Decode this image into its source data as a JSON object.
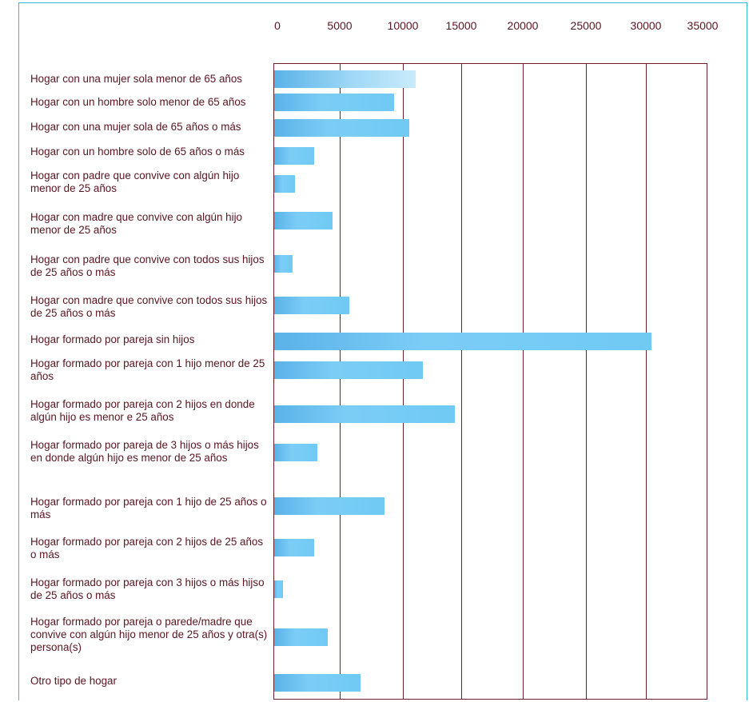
{
  "chart_data": {
    "type": "bar",
    "orientation": "horizontal",
    "xlim": [
      0,
      35000
    ],
    "xticks": [
      "0",
      "5000",
      "10000",
      "15000",
      "20000",
      "25000",
      "30000",
      "35000"
    ],
    "grid": true,
    "categories": [
      "Hogar con una mujer sola menor de 65 años",
      "Hogar con un hombre solo menor de 65 años",
      "Hogar con una mujer sola de 65 años o más",
      "Hogar con un hombre solo de 65 años o más",
      "Hogar con padre que convive con algún hijo menor de 25 años",
      "Hogar con madre que convive con algún hijo menor de 25 años",
      "Hogar con padre que convive con todos sus hijos de 25 años o más",
      "Hogar con madre que convive con todos sus hijos de 25 años o más",
      "Hogar formado por pareja sin hijos",
      "Hogar formado por pareja con 1 hijo menor de 25 años",
      "Hogar formado por pareja con 2 hijos en donde algún hijo es menor e 25 años",
      "Hogar formado por pareja de 3 hijos o más hijos en donde algún hijo es menor de 25 años",
      "Hogar formado por pareja con 1 hijo de 25 años o más",
      "Hogar formado por pareja con 2 hijos de 25 años o más",
      "Hogar formado por pareja con 3 hijos o más hijso de 25 años o más",
      "Hogar formado por pareja o parede/madre que convive con algún hijo menor de 25 años y otra(s) persona(s)",
      "Otro tipo de hogar"
    ],
    "values": [
      11400,
      9700,
      10900,
      3200,
      1700,
      4700,
      1500,
      6100,
      30500,
      12000,
      14600,
      3500,
      8900,
      3200,
      700,
      4300,
      7000
    ]
  },
  "colors": {
    "bar": "#6fcaf4",
    "frame": "#35b8e0",
    "grid": "#6b1f26",
    "text": "#5a1520"
  }
}
